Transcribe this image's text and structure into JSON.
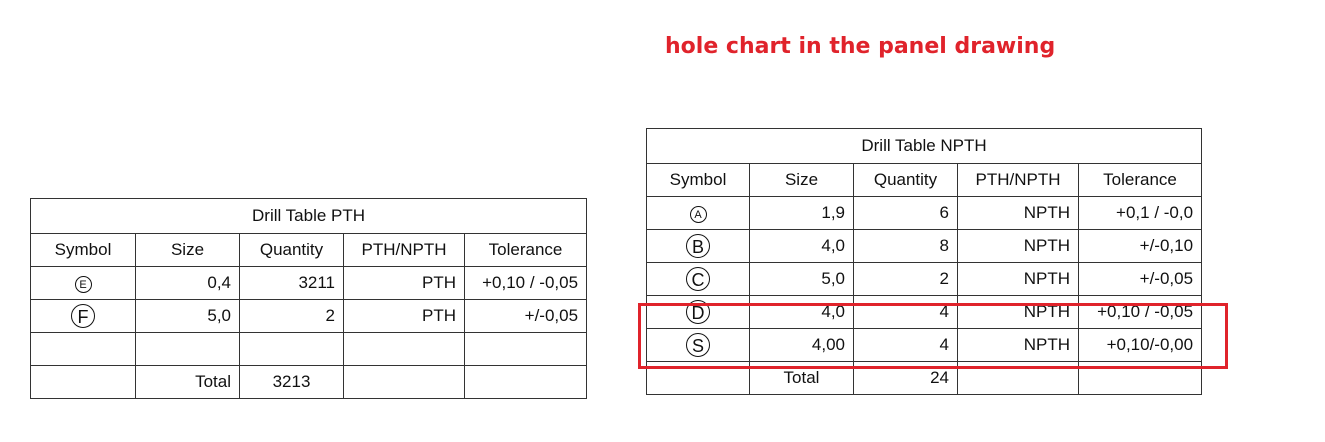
{
  "heading": "hole chart in the panel drawing",
  "pth": {
    "title": "Drill Table PTH",
    "headers": [
      "Symbol",
      "Size",
      "Quantity",
      "PTH/NPTH",
      "Tolerance"
    ],
    "rows": [
      {
        "symbol": "E",
        "size": "0,4",
        "quantity": "3211",
        "type": "PTH",
        "tolerance": "+0,10 / -0,05"
      },
      {
        "symbol": "F",
        "size": "5,0",
        "quantity": "2",
        "type": "PTH",
        "tolerance": "+/-0,05"
      }
    ],
    "total_label": "Total",
    "total_value": "3213"
  },
  "npth": {
    "title": "Drill Table NPTH",
    "headers": [
      "Symbol",
      "Size",
      "Quantity",
      "PTH/NPTH",
      "Tolerance"
    ],
    "rows": [
      {
        "symbol": "A",
        "size": "1,9",
        "quantity": "6",
        "type": "NPTH",
        "tolerance": "+0,1 / -0,0"
      },
      {
        "symbol": "B",
        "size": "4,0",
        "quantity": "8",
        "type": "NPTH",
        "tolerance": "+/-0,10"
      },
      {
        "symbol": "C",
        "size": "5,0",
        "quantity": "2",
        "type": "NPTH",
        "tolerance": "+/-0,05"
      },
      {
        "symbol": "D",
        "size": "4,0",
        "quantity": "4",
        "type": "NPTH",
        "tolerance": "+0,10 / -0,05"
      },
      {
        "symbol": "S",
        "size": "4,00",
        "quantity": "4",
        "type": "NPTH",
        "tolerance": "+0,10/-0,00"
      }
    ],
    "total_label": "Total",
    "total_value": "24"
  },
  "highlight_color": "#e0232b"
}
